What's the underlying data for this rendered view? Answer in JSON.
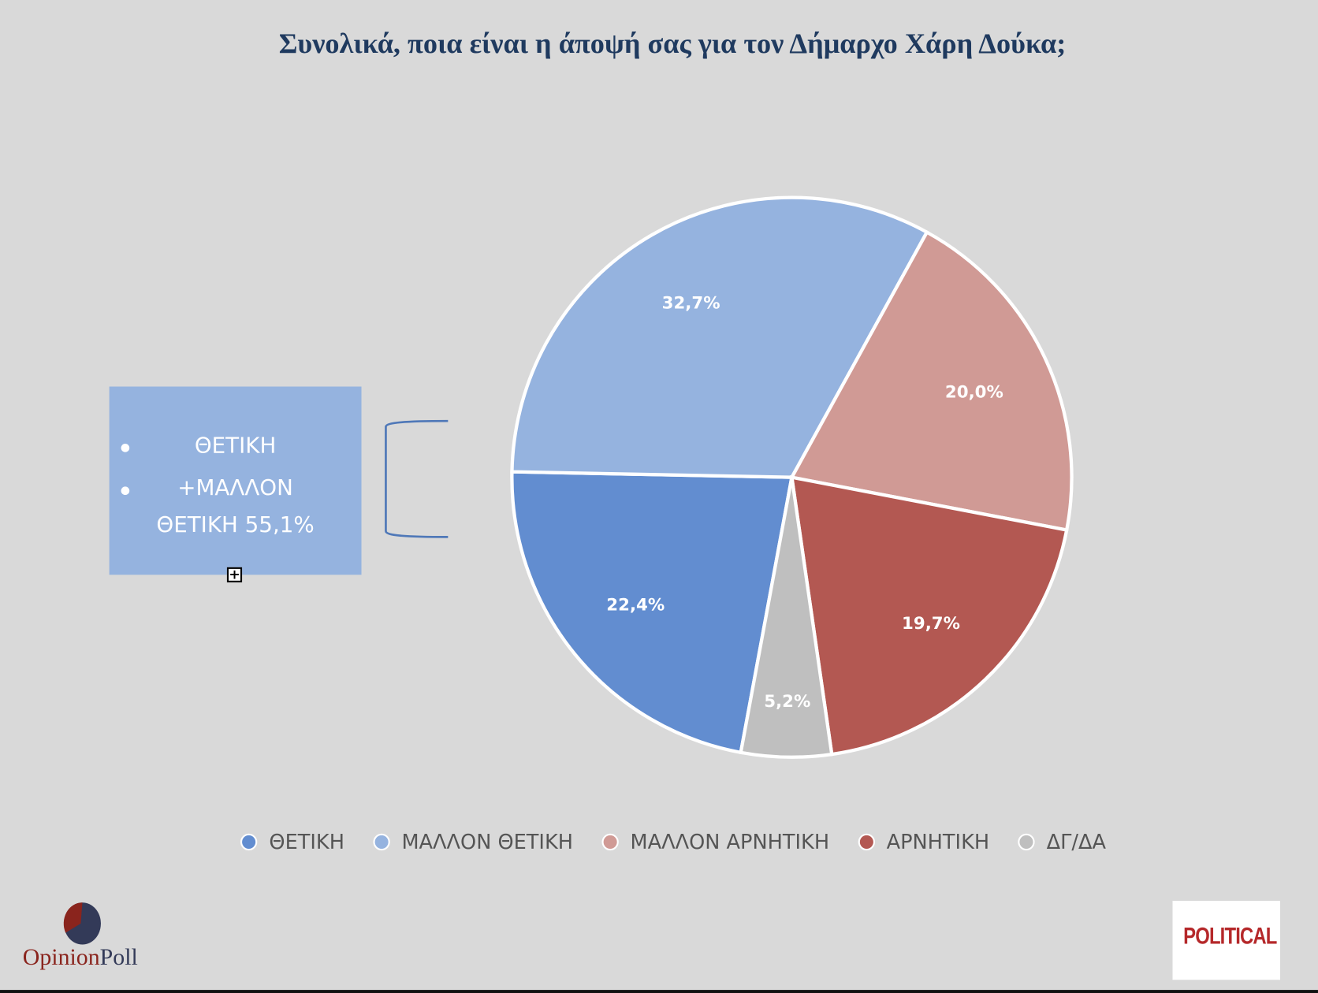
{
  "title": "Συνολικά, ποια είναι η άποψή σας για τον Δήμαρχο Χάρη Δούκα;",
  "callout": {
    "line1": "ΘΕΤΙΚΗ",
    "line2": "+ΜΑΛΛΟΝ",
    "line3": "ΘΕΤΙΚΗ 55,1%"
  },
  "chart_data": {
    "type": "pie",
    "title": "Συνολικά, ποια είναι η άποψή σας για τον Δήμαρχο Χάρη Δούκα;",
    "categories": [
      "ΘΕΤΙΚΗ",
      "ΜΑΛΛΟΝ ΘΕΤΙΚΗ",
      "ΜΑΛΛΟΝ ΑΡΝΗΤΙΚΗ",
      "ΑΡΝΗΤΙΚΗ",
      "ΔΓ/ΔΑ"
    ],
    "values": [
      22.4,
      32.7,
      20.0,
      19.7,
      5.2
    ],
    "labels": [
      "22,4%",
      "32,7%",
      "20,0%",
      "19,7%",
      "5,2%"
    ],
    "colors": [
      "#628dd0",
      "#95b3df",
      "#d09a95",
      "#b35852",
      "#bfbfbf"
    ],
    "legend_position": "bottom"
  },
  "logos": {
    "left": "OpinionPoll",
    "right": "POLITICAL"
  },
  "colors": {
    "background": "#d9d9d9",
    "title": "#1f3a5f"
  }
}
